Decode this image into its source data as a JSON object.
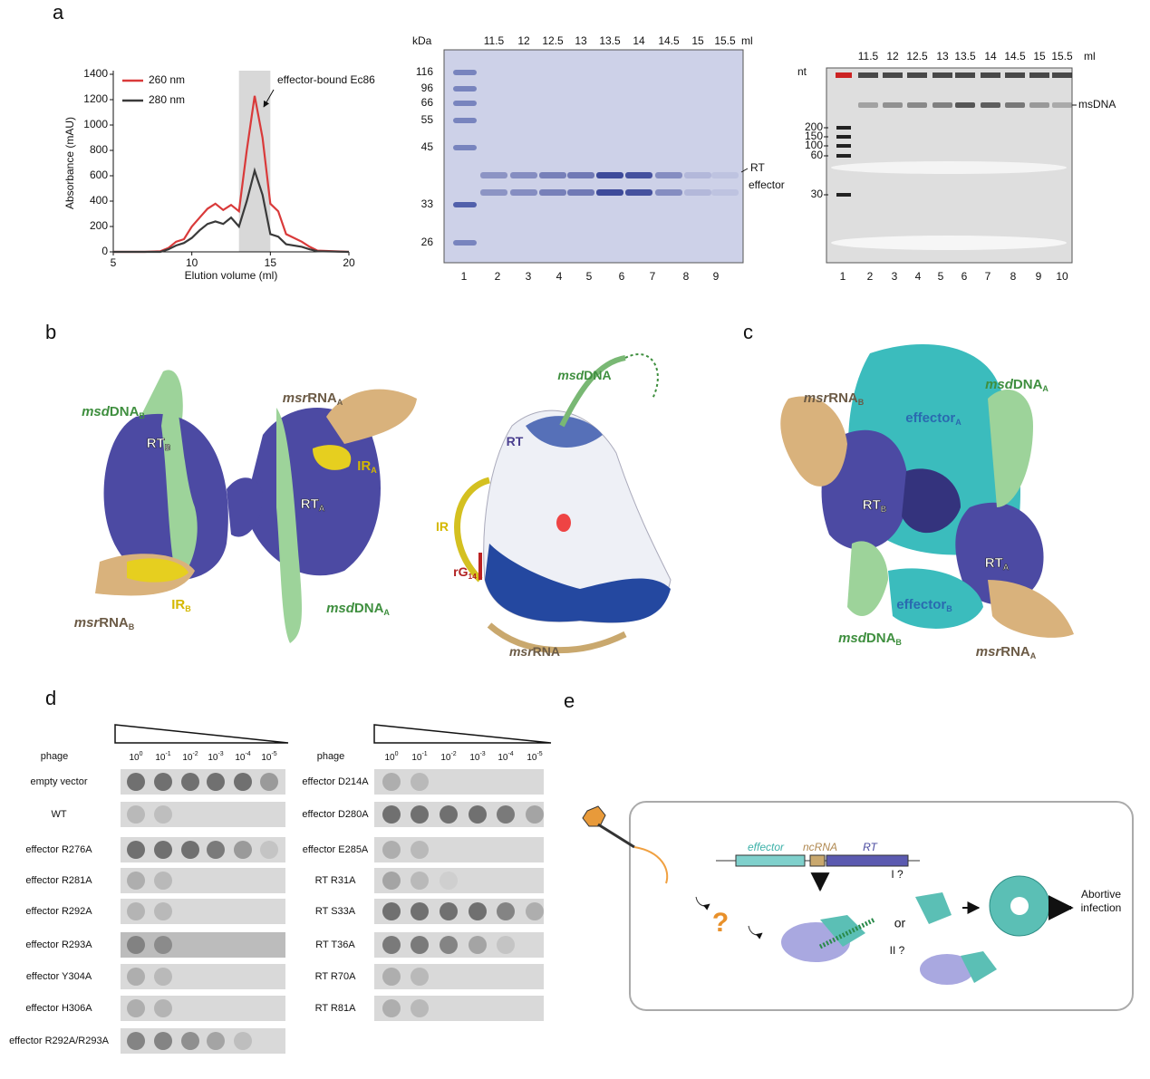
{
  "panel_labels": [
    "a",
    "b",
    "c",
    "d",
    "e"
  ],
  "chart_data": {
    "type": "line",
    "x": [
      5,
      7,
      8,
      8.5,
      9,
      9.5,
      10,
      10.5,
      11,
      11.5,
      12,
      12.5,
      13,
      13.5,
      14,
      14.5,
      15,
      15.5,
      16,
      17,
      17.5,
      18,
      20
    ],
    "series": [
      {
        "name": "260 nm",
        "color": "#d93a3a",
        "values": [
          0,
          0,
          5,
          30,
          80,
          100,
          200,
          270,
          340,
          380,
          330,
          370,
          320,
          800,
          1230,
          900,
          380,
          320,
          140,
          80,
          40,
          10,
          0
        ]
      },
      {
        "name": "280 nm",
        "color": "#3a3a3a",
        "values": [
          0,
          0,
          0,
          20,
          50,
          70,
          110,
          170,
          220,
          240,
          220,
          270,
          200,
          400,
          640,
          450,
          140,
          120,
          60,
          40,
          20,
          5,
          0
        ]
      }
    ],
    "xlim": [
      5,
      20
    ],
    "ylim": [
      0,
      1400
    ],
    "xticks": [
      5,
      10,
      15,
      20
    ],
    "yticks": [
      0,
      200,
      400,
      600,
      800,
      1000,
      1200,
      1400
    ],
    "xlabel": "Elution volume (ml)",
    "ylabel": "Absorbance (mAU)",
    "highlight": [
      13,
      15
    ],
    "annotation": "effector-bound Ec86",
    "legend": "upper left"
  },
  "sds_gel": {
    "unit": "kDa",
    "markers": [
      "116",
      "96",
      "66",
      "55",
      "45",
      "33",
      "26"
    ],
    "fractions": [
      "11.5",
      "12",
      "12.5",
      "13",
      "13.5",
      "14",
      "14.5",
      "15",
      "15.5"
    ],
    "fraction_unit": "ml",
    "lanes": [
      "1",
      "2",
      "3",
      "4",
      "5",
      "6",
      "7",
      "8",
      "9"
    ],
    "bands": [
      "RT",
      "effector"
    ]
  },
  "urea_gel": {
    "unit": "nt",
    "markers": [
      "200",
      "150",
      "100",
      "60",
      "30"
    ],
    "fractions": [
      "11.5",
      "12",
      "12.5",
      "13",
      "13.5",
      "14",
      "14.5",
      "15",
      "15.5"
    ],
    "fraction_unit": "ml",
    "lanes": [
      "1",
      "2",
      "3",
      "4",
      "5",
      "6",
      "7",
      "8",
      "9",
      "10"
    ],
    "bands": [
      "msDNA"
    ]
  },
  "panel_b_map": {
    "labels": [
      {
        "prefix": "msd",
        "text": "DNA",
        "sub": "B"
      },
      {
        "prefix": "msr",
        "text": "RNA",
        "sub": "A"
      },
      {
        "text": "IR",
        "sub": "A"
      },
      {
        "text": "RT",
        "sub": "B"
      },
      {
        "text": "RT",
        "sub": "A"
      },
      {
        "text": "IR",
        "sub": "B"
      },
      {
        "prefix": "msr",
        "text": "RNA",
        "sub": "B"
      },
      {
        "prefix": "msd",
        "text": "DNA",
        "sub": "A"
      }
    ]
  },
  "panel_b_model": {
    "labels": [
      {
        "prefix": "msd",
        "text": "DNA"
      },
      {
        "text": "RT"
      },
      {
        "text": "IR"
      },
      {
        "text": "rG",
        "sub": "14"
      },
      {
        "prefix": "msr",
        "text": "RNA"
      }
    ]
  },
  "panel_c": {
    "labels": [
      {
        "prefix": "msr",
        "text": "RNA",
        "sub": "B"
      },
      {
        "prefix": "msd",
        "text": "DNA",
        "sub": "A"
      },
      {
        "text": "effector",
        "sub": "A"
      },
      {
        "text": "RT",
        "sub": "B"
      },
      {
        "text": "RT",
        "sub": "A"
      },
      {
        "text": "effector",
        "sub": "B"
      },
      {
        "prefix": "msd",
        "text": "DNA",
        "sub": "B"
      },
      {
        "prefix": "msr",
        "text": "RNA",
        "sub": "A"
      }
    ]
  },
  "panel_d": {
    "phage": "phage",
    "dilution_base": "10",
    "dilution_exponents": [
      "0",
      "-1",
      "-2",
      "-3",
      "-4",
      "-5"
    ],
    "left_rows": [
      "empty vector",
      "WT",
      "effector R276A",
      "effector R281A",
      "effector R292A",
      "effector R293A",
      "effector Y304A",
      "effector H306A",
      "effector R292A/R293A"
    ],
    "right_rows": [
      "effector D214A",
      "effector D280A",
      "effector E285A",
      "RT R31A",
      "RT S33A",
      "RT T36A",
      "RT R70A",
      "RT R81A"
    ]
  },
  "panel_e": {
    "genes": [
      "effector",
      "ncRNA",
      "RT"
    ],
    "question": "?",
    "path_1": "I ?",
    "or": "or",
    "path_2": "II ?",
    "outcome": [
      "Abortive",
      "infection"
    ]
  }
}
